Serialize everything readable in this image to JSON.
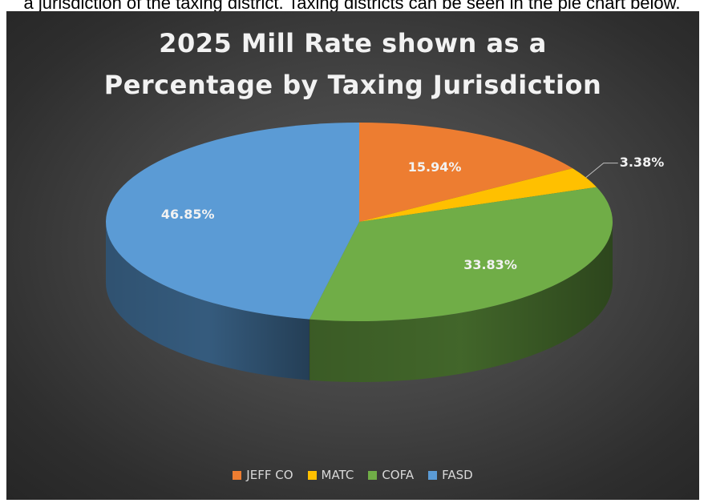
{
  "cropped_top_text": "a jurisdiction of the taxing district. Taxing districts can be seen in the pie chart below.",
  "chart_data": {
    "type": "pie",
    "style": "3d",
    "title_lines": [
      "2025 Mill Rate shown as a",
      "Percentage by Taxing Jurisdiction"
    ],
    "legend_position": "bottom",
    "slices": [
      {
        "name": "JEFF CO",
        "value": 15.94,
        "label": "15.94%",
        "color": "#ed7d31"
      },
      {
        "name": "MATC",
        "value": 3.38,
        "label": "3.38%",
        "color": "#ffc000"
      },
      {
        "name": "COFA",
        "value": 33.83,
        "label": "33.83%",
        "color": "#70ad47"
      },
      {
        "name": "FASD",
        "value": 46.85,
        "label": "46.85%",
        "color": "#5b9bd5"
      }
    ]
  }
}
